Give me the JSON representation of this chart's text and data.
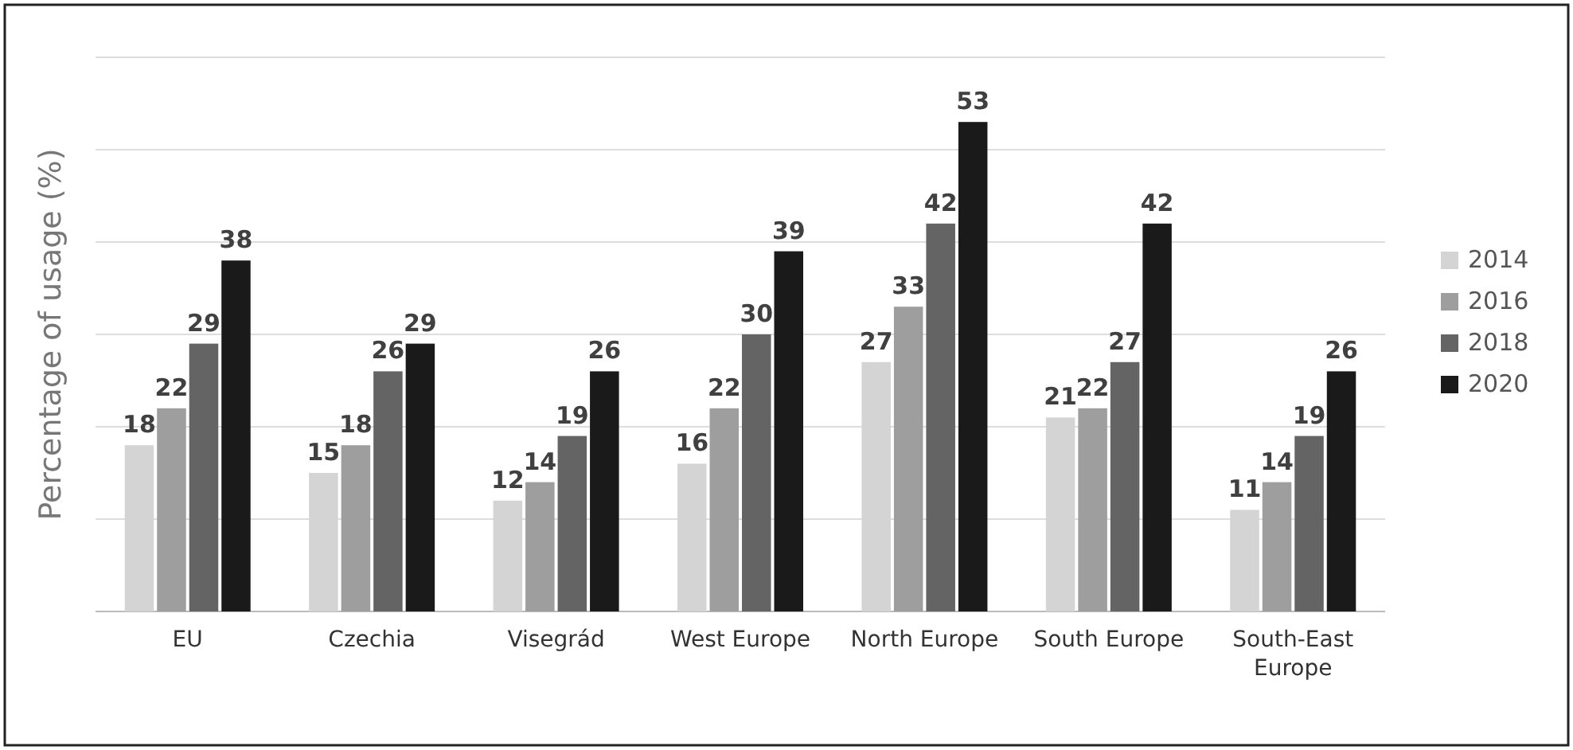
{
  "chart_data": {
    "type": "bar",
    "ylabel": "Percentage of usage (%)",
    "categories": [
      "EU",
      "Czechia",
      "Visegrád",
      "West Europe",
      "North Europe",
      "South Europe",
      "South-East Europe"
    ],
    "series": [
      {
        "name": "2014",
        "color": "#d4d4d4",
        "values": [
          18,
          15,
          12,
          16,
          27,
          21,
          11
        ]
      },
      {
        "name": "2016",
        "color": "#9e9e9e",
        "values": [
          22,
          18,
          14,
          22,
          33,
          22,
          14
        ]
      },
      {
        "name": "2018",
        "color": "#646464",
        "values": [
          29,
          26,
          19,
          30,
          42,
          27,
          19
        ]
      },
      {
        "name": "2020",
        "color": "#1a1a1a",
        "values": [
          38,
          29,
          26,
          39,
          53,
          42,
          26
        ]
      }
    ],
    "ylim": [
      0,
      60
    ],
    "yticks": [
      {
        "value": 0,
        "label": null
      },
      {
        "value": 10,
        "label": null
      },
      {
        "value": 20,
        "label": null
      },
      {
        "value": 30,
        "label": null
      },
      {
        "value": 40,
        "label": null
      },
      {
        "value": 50,
        "label": null
      },
      {
        "value": 60,
        "label": null
      }
    ],
    "tick_labels": "x",
    "grid": "y",
    "legend": "right",
    "data_labels": true
  }
}
